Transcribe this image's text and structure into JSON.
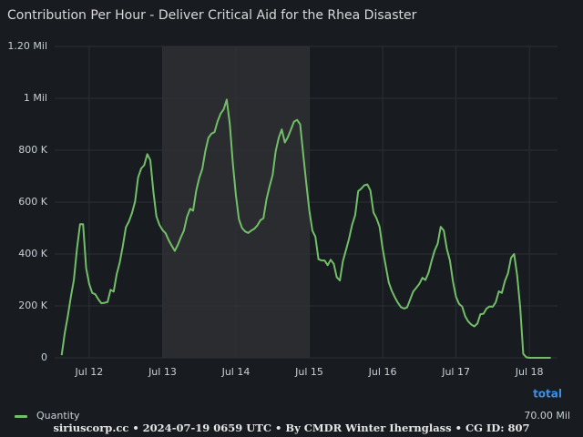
{
  "chart_data": {
    "type": "line",
    "title": "Contribution Per Hour - Deliver Critical Aid for the Rhea Disaster",
    "footer": "siriuscorp.cc • 2024-07-19 0659 UTC • By CMDR Winter Ihernglass • CG ID: 807",
    "legend_header": "total",
    "grid": true,
    "highlight": {
      "from": 24,
      "to": 72
    },
    "xlim": [
      -11.3,
      153.2
    ],
    "xticks": [
      {
        "value": 0,
        "label": "Jul 12"
      },
      {
        "value": 24,
        "label": "Jul 13"
      },
      {
        "value": 48,
        "label": "Jul 14"
      },
      {
        "value": 72,
        "label": "Jul 15"
      },
      {
        "value": 96,
        "label": "Jul 16"
      },
      {
        "value": 120,
        "label": "Jul 17"
      },
      {
        "value": 144,
        "label": "Jul 18"
      }
    ],
    "ylim": [
      0,
      1200000
    ],
    "yticks": [
      0,
      {
        "value": 200000,
        "label": "200 K"
      },
      {
        "value": 400000,
        "label": "400 K"
      },
      {
        "value": 600000,
        "label": "600 K"
      },
      {
        "value": 800000,
        "label": "800 K"
      },
      {
        "value": 1000000,
        "label": "1 Mil"
      },
      {
        "value": 1200000,
        "label": "1.20 Mil"
      }
    ],
    "x": [
      -9,
      -8,
      -7,
      -6,
      -5,
      -4,
      -3,
      -2,
      -1,
      0,
      1,
      2,
      3,
      4,
      5,
      6,
      7,
      8,
      9,
      10,
      11,
      12,
      13,
      14,
      15,
      16,
      17,
      18,
      19,
      20,
      21,
      22,
      23,
      24,
      25,
      26,
      27,
      28,
      29,
      30,
      31,
      32,
      33,
      34,
      35,
      36,
      37,
      38,
      39,
      40,
      41,
      42,
      43,
      44,
      45,
      46,
      47,
      48,
      49,
      50,
      51,
      52,
      53,
      54,
      55,
      56,
      57,
      58,
      59,
      60,
      61,
      62,
      63,
      64,
      65,
      66,
      67,
      68,
      69,
      70,
      71,
      72,
      73,
      74,
      75,
      76,
      77,
      78,
      79,
      80,
      81,
      82,
      83,
      84,
      85,
      86,
      87,
      88,
      89,
      90,
      91,
      92,
      93,
      94,
      95,
      96,
      97,
      98,
      99,
      100,
      101,
      102,
      103,
      104,
      105,
      106,
      107,
      108,
      109,
      110,
      111,
      112,
      113,
      114,
      115,
      116,
      117,
      118,
      119,
      120,
      121,
      122,
      123,
      124,
      125,
      126,
      127,
      128,
      129,
      130,
      131,
      132,
      133,
      134,
      135,
      136,
      137,
      138,
      139,
      140,
      141,
      142,
      143,
      144,
      145,
      146,
      147,
      148,
      149,
      150,
      151
    ],
    "series": [
      {
        "name": "Quantity",
        "color": "#73bf69",
        "total_label": "70.00 Mil",
        "values": [
          10000,
          95000,
          160000,
          235000,
          300000,
          420000,
          515000,
          515000,
          345000,
          285000,
          250000,
          245000,
          225000,
          210000,
          212000,
          215000,
          262000,
          255000,
          322000,
          368000,
          430000,
          503000,
          525000,
          558000,
          602000,
          695000,
          730000,
          742000,
          785000,
          762000,
          640000,
          545000,
          512000,
          492000,
          480000,
          453000,
          432000,
          412000,
          435000,
          465000,
          490000,
          543000,
          574000,
          567000,
          644000,
          693000,
          728000,
          796000,
          848000,
          864000,
          870000,
          912000,
          941000,
          958000,
          995000,
          900000,
          750000,
          625000,
          534000,
          500000,
          487000,
          481000,
          490000,
          497000,
          510000,
          530000,
          538000,
          610000,
          660000,
          705000,
          795000,
          848000,
          880000,
          830000,
          850000,
          880000,
          910000,
          917000,
          900000,
          787000,
          673000,
          570000,
          490000,
          467000,
          380000,
          375000,
          375000,
          357000,
          378000,
          362000,
          310000,
          298000,
          372000,
          415000,
          458000,
          512000,
          550000,
          642000,
          652000,
          665000,
          668000,
          645000,
          560000,
          538000,
          505000,
          420000,
          355000,
          290000,
          258000,
          233000,
          212000,
          195000,
          190000,
          194000,
          225000,
          255000,
          270000,
          285000,
          308000,
          300000,
          327000,
          372000,
          413000,
          440000,
          505000,
          490000,
          420000,
          375000,
          295000,
          235000,
          208000,
          198000,
          160000,
          140000,
          128000,
          121000,
          132000,
          168000,
          170000,
          190000,
          198000,
          197000,
          214000,
          256000,
          250000,
          296000,
          325000,
          385000,
          400000,
          318000,
          193000,
          15000,
          2000,
          0,
          0,
          0,
          0,
          0,
          0,
          0,
          0
        ]
      }
    ]
  }
}
